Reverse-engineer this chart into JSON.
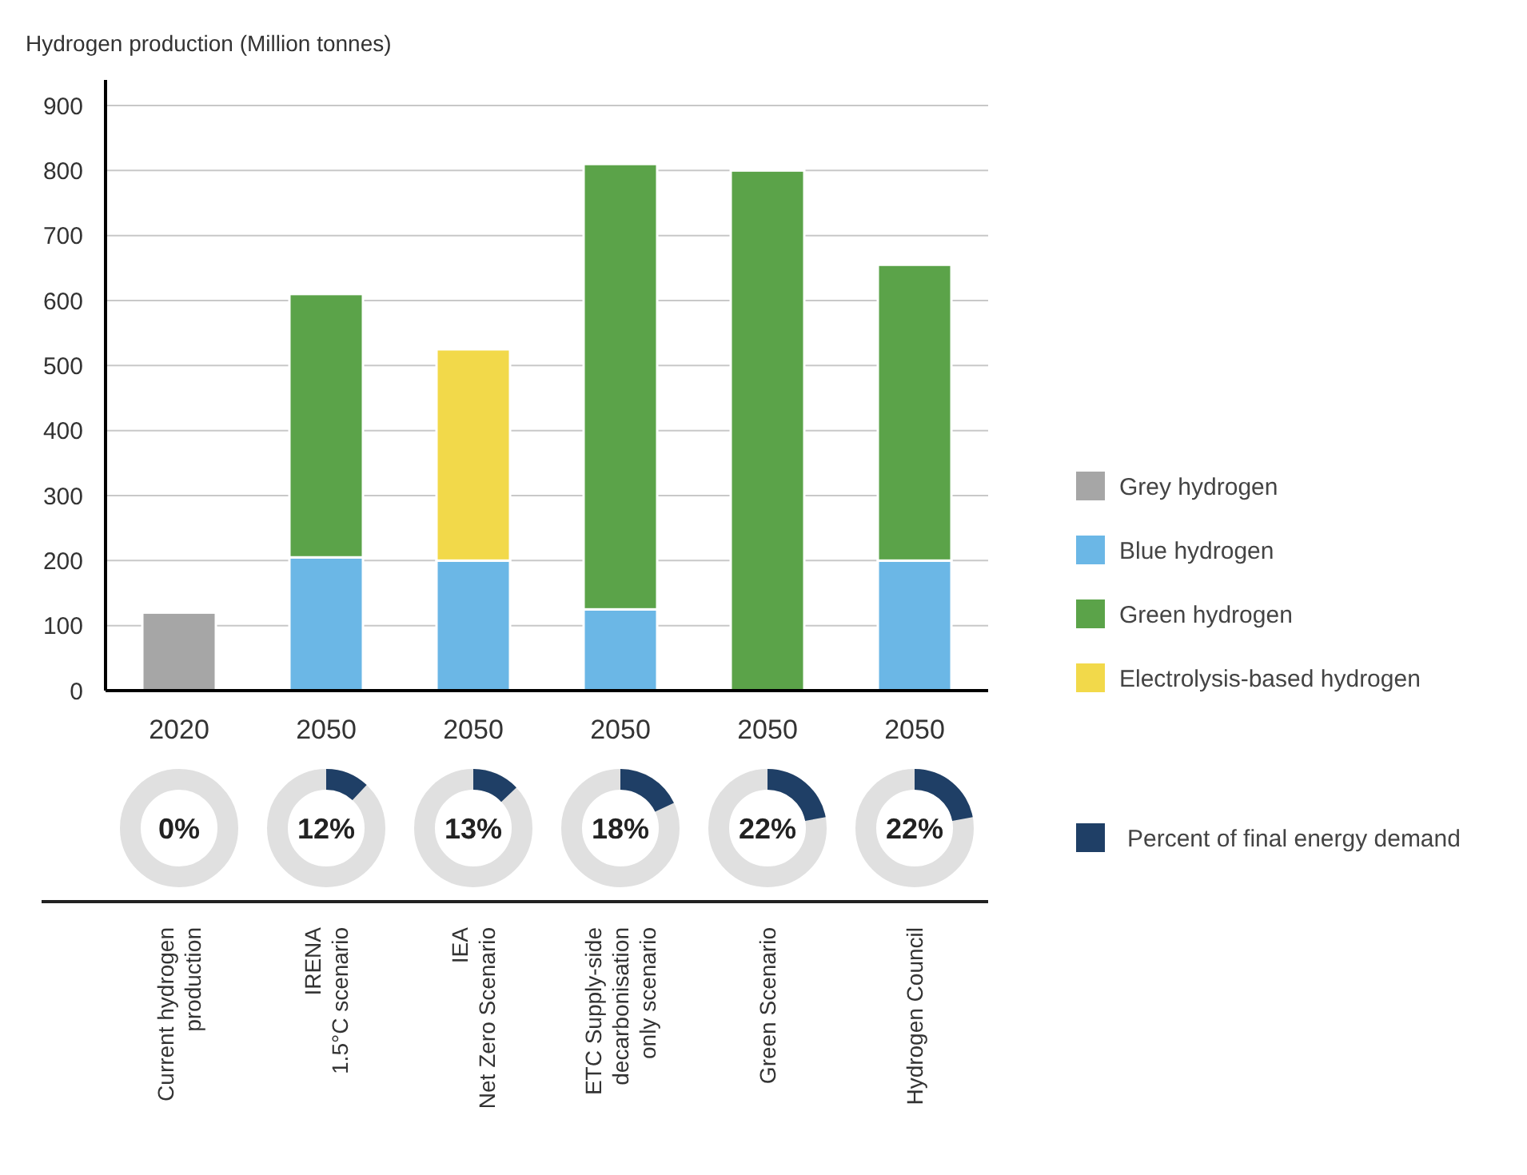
{
  "chart_data": [
    {
      "type": "bar",
      "stacked": true,
      "ylabel": "Hydrogen production (Million tonnes)",
      "categories": [
        "2020",
        "2050",
        "2050",
        "2050",
        "2050",
        "2050"
      ],
      "series": [
        {
          "name": "Grey hydrogen",
          "color": "#a6a6a6",
          "values": [
            120,
            null,
            null,
            null,
            null,
            null
          ]
        },
        {
          "name": "Blue hydrogen",
          "color": "#6bb7e6",
          "values": [
            null,
            205,
            200,
            125,
            null,
            200
          ]
        },
        {
          "name": "Green hydrogen",
          "color": "#5ba349",
          "values": [
            null,
            405,
            null,
            685,
            800,
            455
          ]
        },
        {
          "name": "Electrolysis-based hydrogen",
          "color": "#f2d94a",
          "values": [
            null,
            null,
            325,
            null,
            null,
            null
          ]
        }
      ],
      "ylim": [
        0,
        900
      ],
      "yticks": [
        0,
        100,
        200,
        300,
        400,
        500,
        600,
        700,
        800,
        900
      ],
      "grid": "y",
      "legend": "right"
    },
    {
      "type": "other",
      "categories": [
        "Current hydrogen\nproduction",
        "IRENA\n1.5°C scenario",
        "IEA\nNet Zero Scenario",
        "ETC Supply-side\ndecarbonisation\nonly scenario",
        "Green Scenario",
        "Hydrogen Council"
      ],
      "series": [
        {
          "name": "Percent of final energy demand",
          "color": "#1f3f66",
          "values": [
            0,
            12,
            13,
            18,
            22,
            22
          ],
          "value_labels": [
            "0%",
            "12%",
            "13%",
            "18%",
            "22%",
            "22%"
          ]
        }
      ],
      "legend": "right"
    }
  ]
}
